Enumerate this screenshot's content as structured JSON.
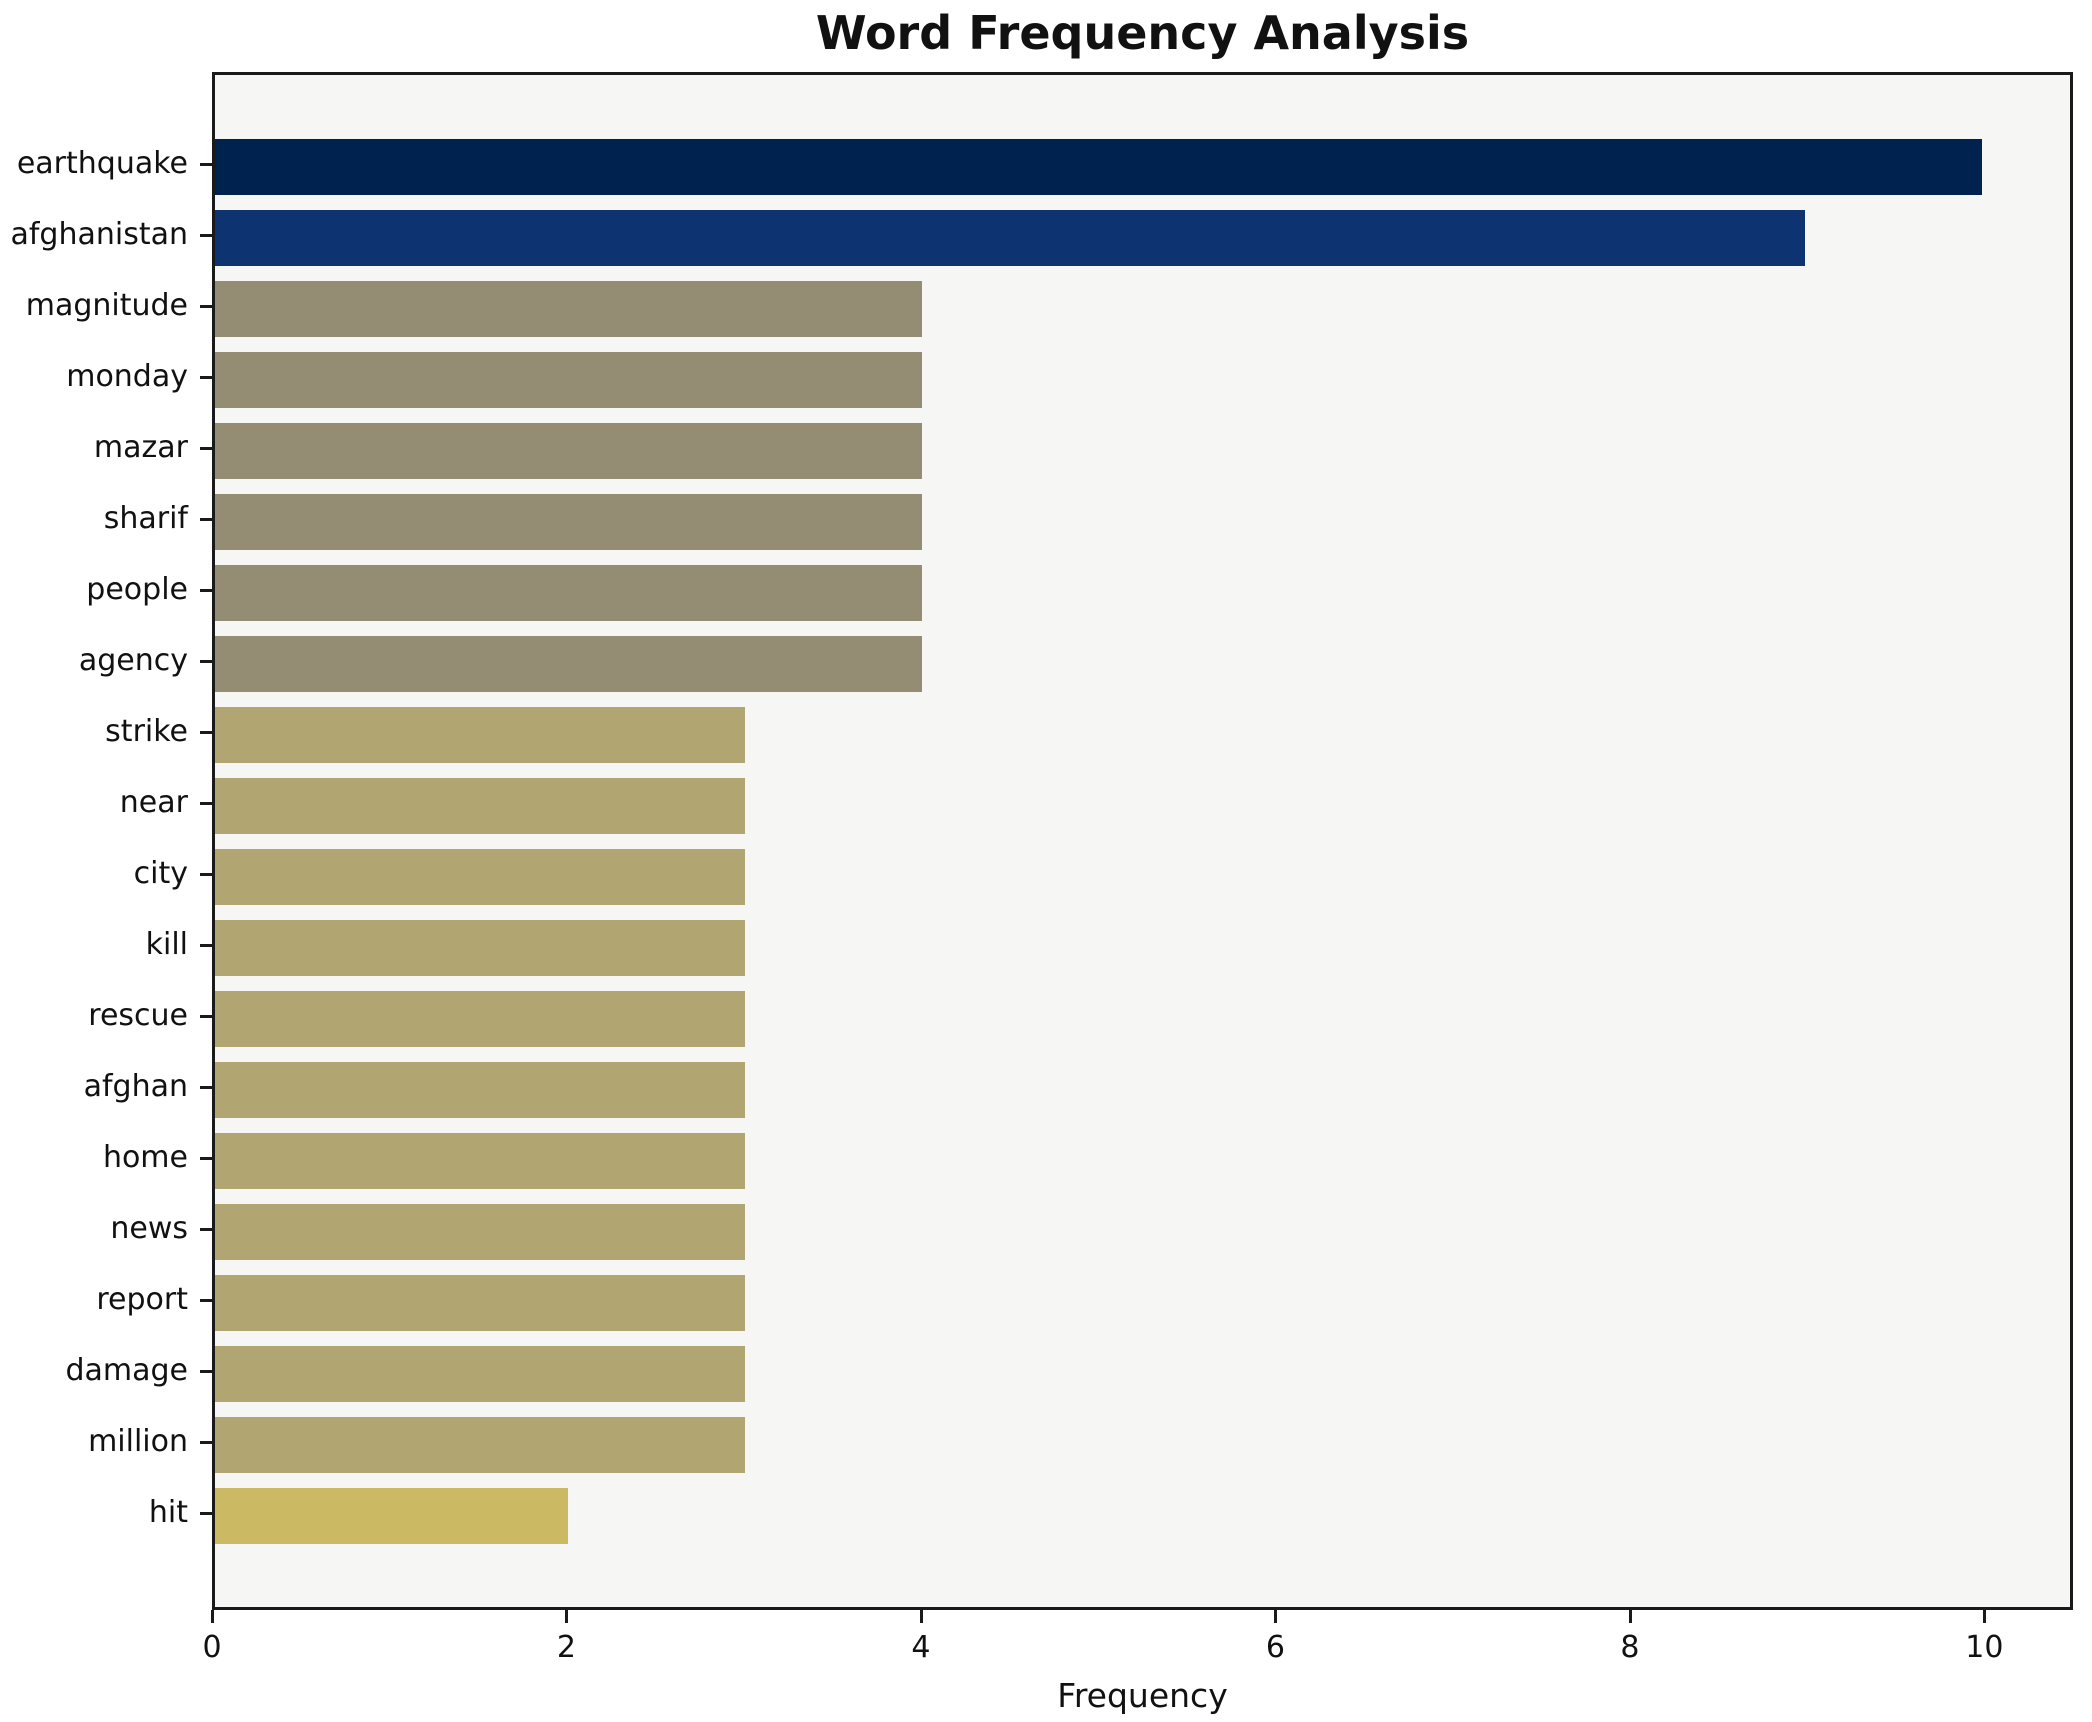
{
  "title": "Word Frequency Analysis",
  "chart_data": {
    "type": "bar",
    "orientation": "horizontal",
    "title": "Word Frequency Analysis",
    "xlabel": "Frequency",
    "ylabel": "",
    "categories": [
      "earthquake",
      "afghanistan",
      "magnitude",
      "monday",
      "mazar",
      "sharif",
      "people",
      "agency",
      "strike",
      "near",
      "city",
      "kill",
      "rescue",
      "afghan",
      "home",
      "news",
      "report",
      "damage",
      "million",
      "hit"
    ],
    "values": [
      10,
      9,
      4,
      4,
      4,
      4,
      4,
      4,
      3,
      3,
      3,
      3,
      3,
      3,
      3,
      3,
      3,
      3,
      3,
      2
    ],
    "bar_colors": [
      "#00224e",
      "#0d3371",
      "#948d74",
      "#948d74",
      "#948d74",
      "#948d74",
      "#948d74",
      "#948d74",
      "#b1a671",
      "#b1a671",
      "#b1a671",
      "#b1a671",
      "#b1a671",
      "#b1a671",
      "#b1a671",
      "#b1a671",
      "#b1a671",
      "#b1a671",
      "#b1a671",
      "#cbb963"
    ],
    "x_ticks": [
      0,
      2,
      4,
      6,
      8,
      10
    ],
    "xlim": [
      0,
      10.5
    ],
    "grid": false,
    "legend": null,
    "plot_background": "#f6f6f4",
    "spine_color": "#1a1a1a"
  }
}
